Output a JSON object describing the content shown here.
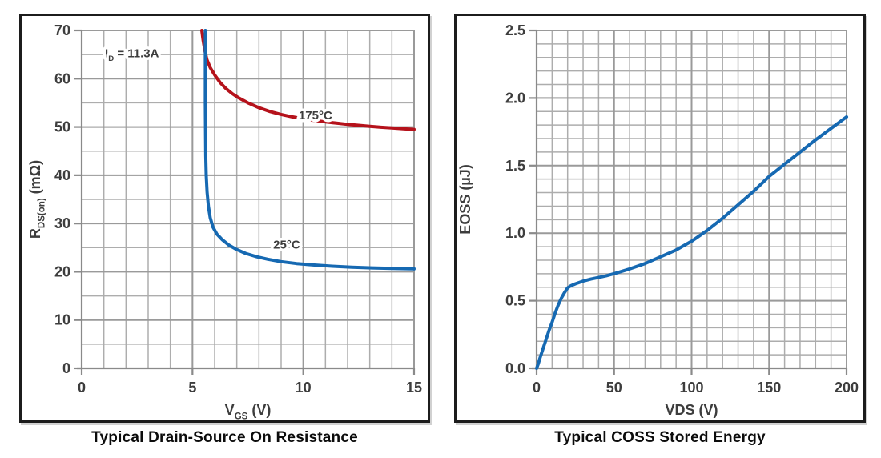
{
  "colors": {
    "red": "#b5121b",
    "blue": "#1669b2",
    "grid_minor": "#adadad",
    "grid_major": "#9a9a9a",
    "axis": "#8a8a8a",
    "tick_text": "#3d3d3d",
    "label_text": "#3d3d3d",
    "title_text": "#0c0c0c",
    "panel_border": "#1c1c1c",
    "background": "#ffffff"
  },
  "chart_data": [
    {
      "type": "line",
      "title": "Typical Drain-Source On Resistance",
      "xlabel_parts": [
        {
          "t": "V"
        },
        {
          "t": "GS",
          "sub": true
        },
        {
          "t": " (V)"
        }
      ],
      "ylabel_parts": [
        {
          "t": "R"
        },
        {
          "t": "DS(on)",
          "sub": true
        },
        {
          "t": " (mΩ)"
        }
      ],
      "xlim": [
        0,
        15
      ],
      "ylim": [
        0,
        70
      ],
      "x_major_ticks": [
        0,
        5,
        10,
        15
      ],
      "x_minor_step": 1,
      "y_major_ticks": [
        0,
        10,
        20,
        30,
        40,
        50,
        60,
        70
      ],
      "y_minor_step": 5,
      "x_tick_decimals": 0,
      "y_tick_decimals": 0,
      "grid": true,
      "legend_position": "none",
      "annotation": {
        "parts": [
          {
            "t": "I"
          },
          {
            "t": "D",
            "sub": true
          },
          {
            "t": " = 11.3A"
          }
        ],
        "x": 1.05,
        "y": 65.3
      },
      "series": [
        {
          "name": "175°C",
          "color_key": "red",
          "label": {
            "text": "175°C",
            "x": 10.55,
            "y": 52.4
          },
          "points": [
            [
              5.42,
              70
            ],
            [
              5.48,
              68
            ],
            [
              5.55,
              66
            ],
            [
              5.65,
              64
            ],
            [
              5.8,
              62.3
            ],
            [
              6.0,
              60.8
            ],
            [
              6.25,
              59.2
            ],
            [
              6.5,
              58.0
            ],
            [
              6.8,
              56.9
            ],
            [
              7.1,
              56.0
            ],
            [
              7.5,
              55.0
            ],
            [
              8.0,
              54.0
            ],
            [
              8.5,
              53.2
            ],
            [
              9.0,
              52.6
            ],
            [
              9.5,
              52.1
            ],
            [
              10.0,
              51.7
            ],
            [
              10.5,
              51.35
            ],
            [
              11.0,
              51.05
            ],
            [
              11.5,
              50.8
            ],
            [
              12.0,
              50.55
            ],
            [
              12.5,
              50.35
            ],
            [
              13.0,
              50.15
            ],
            [
              13.5,
              49.95
            ],
            [
              14.0,
              49.8
            ],
            [
              14.5,
              49.65
            ],
            [
              15.0,
              49.5
            ]
          ]
        },
        {
          "name": "25°C",
          "color_key": "blue",
          "label": {
            "text": "25°C",
            "x": 9.25,
            "y": 25.6
          },
          "points": [
            [
              5.58,
              70
            ],
            [
              5.58,
              55
            ],
            [
              5.59,
              48
            ],
            [
              5.6,
              44
            ],
            [
              5.62,
              40
            ],
            [
              5.66,
              36.5
            ],
            [
              5.72,
              33.5
            ],
            [
              5.8,
              31.2
            ],
            [
              5.92,
              29.3
            ],
            [
              6.1,
              27.8
            ],
            [
              6.35,
              26.6
            ],
            [
              6.65,
              25.5
            ],
            [
              7.0,
              24.6
            ],
            [
              7.4,
              23.8
            ],
            [
              7.9,
              23.1
            ],
            [
              8.4,
              22.6
            ],
            [
              9.0,
              22.1
            ],
            [
              9.7,
              21.7
            ],
            [
              10.5,
              21.4
            ],
            [
              11.3,
              21.15
            ],
            [
              12.2,
              20.95
            ],
            [
              13.1,
              20.8
            ],
            [
              14.0,
              20.7
            ],
            [
              15.0,
              20.6
            ]
          ]
        }
      ]
    },
    {
      "type": "line",
      "title": "Typical COSS Stored Energy",
      "xlabel_parts": [
        {
          "t": "VDS (V)"
        }
      ],
      "ylabel_parts": [
        {
          "t": "EOSS (µJ)"
        }
      ],
      "xlim": [
        0,
        200
      ],
      "ylim": [
        0,
        2.5
      ],
      "x_major_ticks": [
        0,
        50,
        100,
        150,
        200
      ],
      "x_minor_step": 10,
      "y_major_ticks": [
        0,
        0.5,
        1.0,
        1.5,
        2.0,
        2.5
      ],
      "y_minor_step": 0.1,
      "x_tick_decimals": 0,
      "y_tick_decimals": 1,
      "grid": true,
      "legend_position": "none",
      "series": [
        {
          "name": "EOSS",
          "color_key": "blue",
          "points": [
            [
              0,
              0
            ],
            [
              1,
              0.03
            ],
            [
              2,
              0.07
            ],
            [
              4,
              0.14
            ],
            [
              6,
              0.21
            ],
            [
              8,
              0.28
            ],
            [
              10,
              0.34
            ],
            [
              12,
              0.41
            ],
            [
              14,
              0.47
            ],
            [
              16,
              0.52
            ],
            [
              18,
              0.56
            ],
            [
              20,
              0.595
            ],
            [
              22,
              0.61
            ],
            [
              25,
              0.625
            ],
            [
              30,
              0.645
            ],
            [
              35,
              0.66
            ],
            [
              40,
              0.672
            ],
            [
              45,
              0.685
            ],
            [
              50,
              0.7
            ],
            [
              60,
              0.735
            ],
            [
              70,
              0.775
            ],
            [
              80,
              0.825
            ],
            [
              90,
              0.875
            ],
            [
              100,
              0.94
            ],
            [
              110,
              1.02
            ],
            [
              120,
              1.11
            ],
            [
              130,
              1.21
            ],
            [
              140,
              1.31
            ],
            [
              150,
              1.42
            ],
            [
              160,
              1.51
            ],
            [
              170,
              1.6
            ],
            [
              180,
              1.69
            ],
            [
              190,
              1.775
            ],
            [
              200,
              1.86
            ]
          ]
        }
      ]
    }
  ]
}
